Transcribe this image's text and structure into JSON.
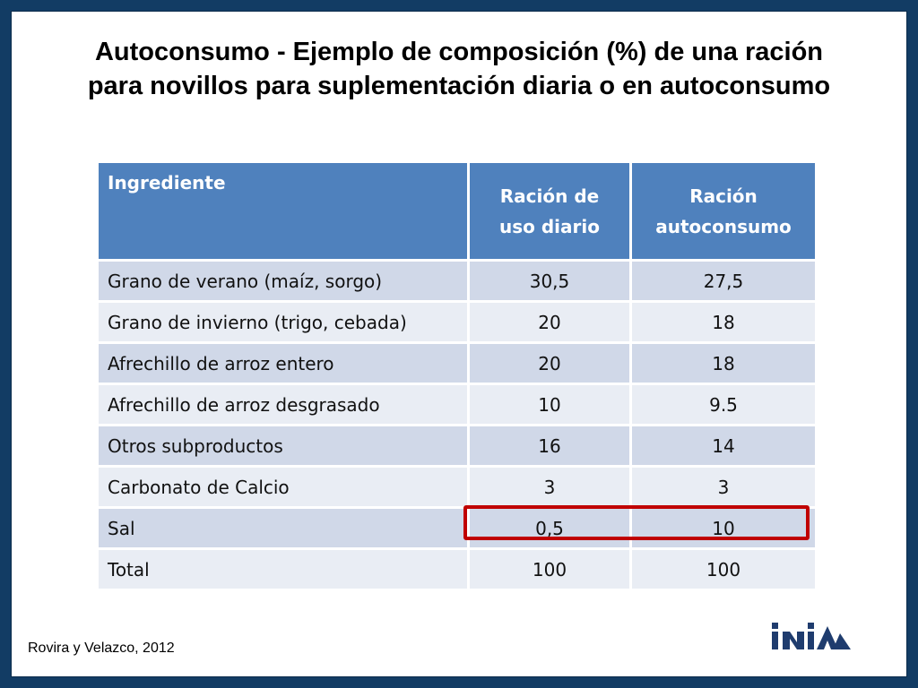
{
  "title_line1": "Autoconsumo - Ejemplo de composición (%) de una ración",
  "title_line2": "para novillos para suplementación diaria o en autoconsumo",
  "table": {
    "headers": [
      "Ingrediente",
      "Ración de uso diario",
      "Ración autoconsumo"
    ],
    "header_lines": {
      "col1": [
        "Ración de",
        "uso diario"
      ],
      "col2": [
        "Ración",
        "autoconsumo"
      ]
    },
    "rows": [
      [
        "Grano de verano (maíz, sorgo)",
        "30,5",
        "27,5"
      ],
      [
        "Grano de invierno (trigo, cebada)",
        "20",
        "18"
      ],
      [
        "Afrechillo de arroz entero",
        "20",
        "18"
      ],
      [
        "Afrechillo de arroz desgrasado",
        "10",
        "9.5"
      ],
      [
        "Otros subproductos",
        "16",
        "14"
      ],
      [
        "Carbonato de Calcio",
        "3",
        "3"
      ],
      [
        "Sal",
        "0,5",
        "10"
      ],
      [
        "Total",
        "100",
        "100"
      ]
    ],
    "highlighted_row": "Sal"
  },
  "source": "Rovira y Velazco, 2012",
  "logo_text": "INIA",
  "colors": {
    "header_bg": "#4f81bd",
    "row_dark": "#d0d8e8",
    "row_light": "#e9edf4",
    "highlight_border": "#c00000",
    "frame": "#123c64"
  }
}
